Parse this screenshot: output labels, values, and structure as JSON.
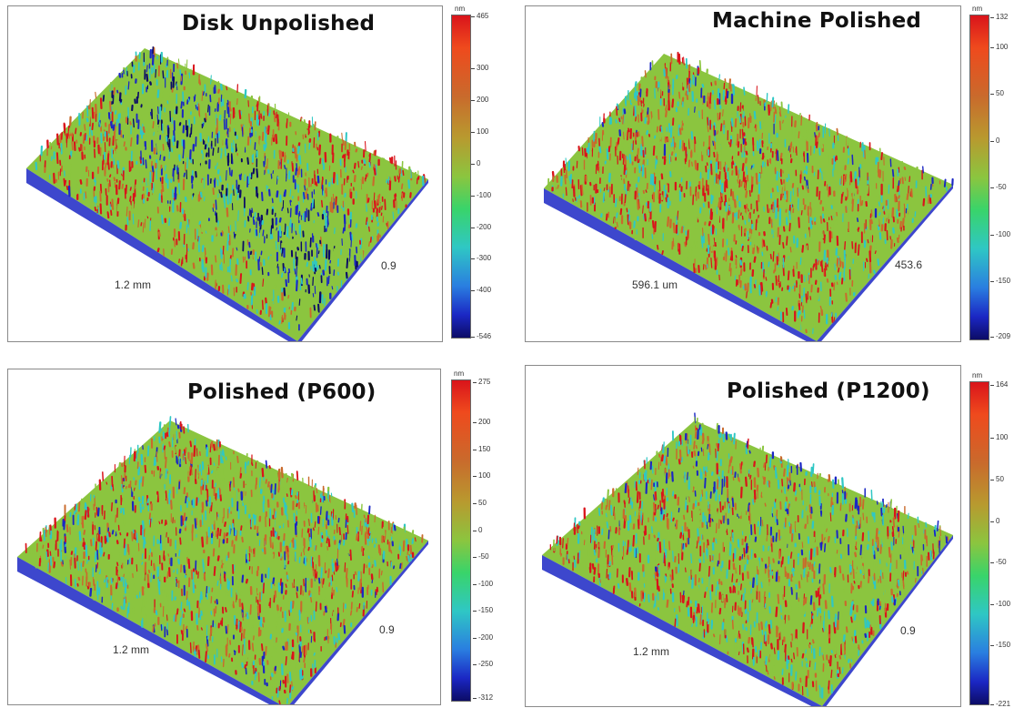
{
  "chart_data": [
    {
      "type": "heatmap",
      "title": "Disk Unpolished",
      "xlabel": "1.2 mm",
      "ylabel": "0.9",
      "colorbar": {
        "unit": "nm",
        "max": 465,
        "min": -546,
        "ticks": [
          465,
          300,
          200,
          100,
          0,
          -100,
          -200,
          -300,
          -400,
          -546
        ]
      }
    },
    {
      "type": "heatmap",
      "title": "Machine Polished",
      "xlabel": "596.1 um",
      "ylabel": "453.6",
      "colorbar": {
        "unit": "nm",
        "max": 132,
        "min": -209,
        "ticks": [
          132,
          100,
          50,
          0,
          -50,
          -100,
          -150,
          -209
        ]
      }
    },
    {
      "type": "heatmap",
      "title": "Polished (P600)",
      "xlabel": "1.2 mm",
      "ylabel": "0.9",
      "colorbar": {
        "unit": "nm",
        "max": 275,
        "min": -312,
        "ticks": [
          275,
          200,
          150,
          100,
          50,
          0,
          -50,
          -100,
          -150,
          -200,
          -250,
          -312
        ]
      }
    },
    {
      "type": "heatmap",
      "title": "Polished (P1200)",
      "xlabel": "1.2 mm",
      "ylabel": "0.9",
      "colorbar": {
        "unit": "nm",
        "max": 164,
        "min": -221,
        "ticks": [
          164,
          100,
          50,
          0,
          -50,
          -100,
          -150,
          -221
        ]
      }
    }
  ],
  "colors": {
    "high": "#d9141b",
    "upper": "#c96a2c",
    "mid": "#8bc53f",
    "lower": "#2fc7c4",
    "low": "#1b27c4",
    "lowest": "#0c0c66"
  }
}
